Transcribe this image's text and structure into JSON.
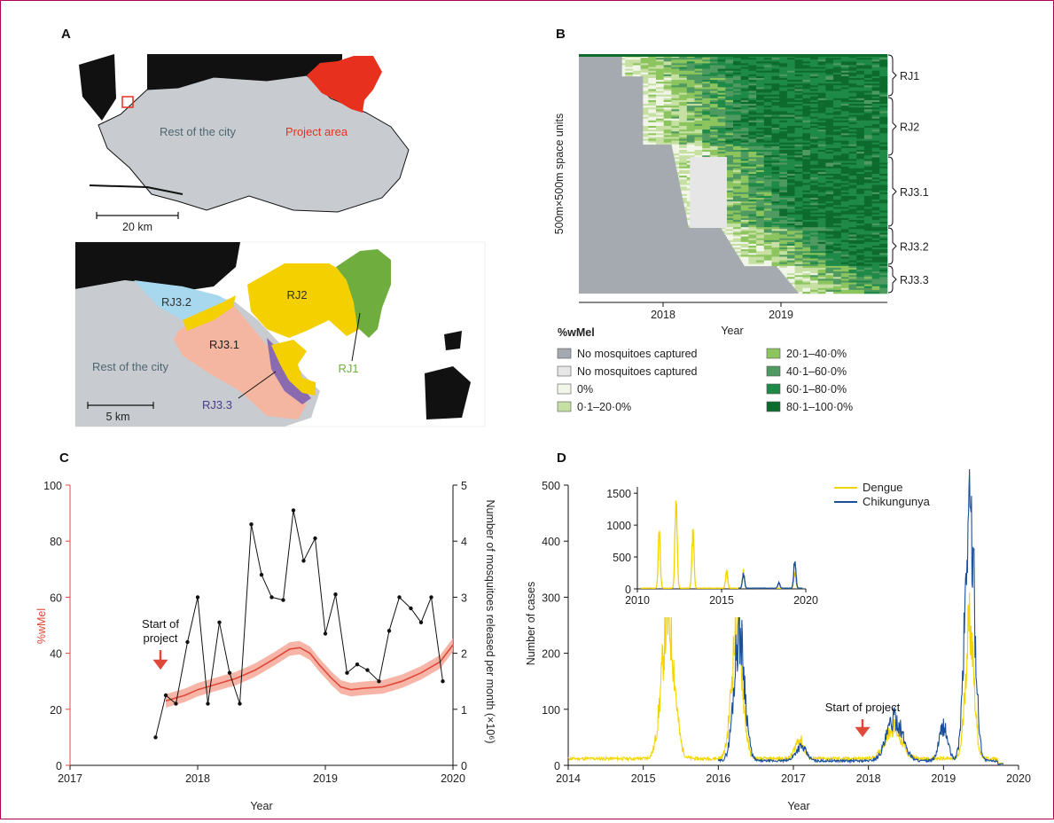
{
  "panels": {
    "A": {
      "letter": "A",
      "scale_top": "20 km",
      "scale_bottom": "5 km",
      "labels": {
        "rest_top": "Rest of the city",
        "project": "Project area",
        "rest_bottom": "Rest of the city",
        "rj1": "RJ1",
        "rj2": "RJ2",
        "rj31": "RJ3.1",
        "rj32": "RJ3.2",
        "rj33": "RJ3.3"
      },
      "colors": {
        "land": "#c8ccd0",
        "project": "#e8301e",
        "rj1": "#6fae3e",
        "rj2": "#f5d000",
        "rj31": "#f4b6a0",
        "rj32": "#a8d8ee",
        "rj33": "#8a6bb0",
        "black": "#111111"
      }
    },
    "B": {
      "letter": "B",
      "ylabel": "500m×500m space units",
      "xlabel": "Year",
      "xticks": [
        "2018",
        "2019"
      ],
      "regions": [
        "RJ1",
        "RJ2",
        "RJ3.1",
        "RJ3.2",
        "RJ3.3"
      ],
      "legend_title": "%wMel",
      "legend": [
        {
          "label": "No mosquitoes captured",
          "color": "#a4aab0"
        },
        {
          "label": "No mosquitoes captured",
          "color": "#e6e6e6"
        },
        {
          "label": "0%",
          "color": "#f2f6e8"
        },
        {
          "label": "0·1–20·0%",
          "color": "#c6e0a4"
        },
        {
          "label": "20·1–40·0%",
          "color": "#8cc45e"
        },
        {
          "label": "40·1–60·0%",
          "color": "#4e9a60"
        },
        {
          "label": "60·1–80·0%",
          "color": "#1f8a48"
        },
        {
          "label": "80·1–100·0%",
          "color": "#0d6b2e"
        }
      ]
    },
    "C": {
      "letter": "C",
      "ylabel_left": "%wMel",
      "ylabel_right": "Number of mosquitoes released per month (×10⁶)",
      "xlabel": "Year",
      "xticks": [
        "2017",
        "2018",
        "2019",
        "2020"
      ],
      "yticks_left": [
        "0",
        "20",
        "40",
        "60",
        "80",
        "100"
      ],
      "yticks_right": [
        "0",
        "1",
        "2",
        "3",
        "4",
        "5"
      ],
      "annotation_line1": "Start of",
      "annotation_line2": "project"
    },
    "D": {
      "letter": "D",
      "ylabel": "Number of cases",
      "xlabel": "Year",
      "xticks": [
        "2014",
        "2015",
        "2016",
        "2017",
        "2018",
        "2019",
        "2020"
      ],
      "yticks": [
        "0",
        "100",
        "200",
        "300",
        "400",
        "500"
      ],
      "inset_xticks": [
        "2010",
        "2015",
        "2020"
      ],
      "inset_yticks": [
        "0",
        "500",
        "1000",
        "1500"
      ],
      "legend_dengue": "Dengue",
      "legend_chik": "Chikungunya",
      "annotation": "Start of project"
    }
  },
  "chart_data": [
    {
      "panel": "B",
      "type": "heatmap",
      "xlabel": "Year",
      "ylabel": "500m×500m space units",
      "xlim": [
        2017.4,
        2019.9
      ],
      "regions": [
        "RJ1",
        "RJ2",
        "RJ3.1",
        "RJ3.2",
        "RJ3.3"
      ]
    },
    {
      "panel": "C",
      "type": "line",
      "xlabel": "Year",
      "xlim": [
        2017,
        2020
      ],
      "ylim": [
        0,
        100
      ],
      "ylim_right": [
        0,
        5
      ],
      "series": [
        {
          "name": "%wMel",
          "axis": "left",
          "color": "#e0483a",
          "x": [
            2017.75,
            2017.9,
            2018.0,
            2018.15,
            2018.3,
            2018.45,
            2018.6,
            2018.72,
            2018.8,
            2018.88,
            2018.95,
            2019.05,
            2019.12,
            2019.2,
            2019.3,
            2019.45,
            2019.6,
            2019.75,
            2019.9,
            2020.0
          ],
          "y": [
            23,
            25,
            27,
            29,
            31,
            34,
            38,
            41.5,
            42,
            40,
            36,
            31,
            28,
            27,
            27.5,
            28,
            30,
            33,
            37,
            43
          ],
          "band": 1.5
        },
        {
          "name": "Released",
          "axis": "right",
          "color": "#111111",
          "x": [
            2017.67,
            2017.75,
            2017.83,
            2017.92,
            2018.0,
            2018.08,
            2018.17,
            2018.25,
            2018.33,
            2018.42,
            2018.5,
            2018.58,
            2018.67,
            2018.75,
            2018.83,
            2018.92,
            2019.0,
            2019.08,
            2019.17,
            2019.25,
            2019.33,
            2019.42,
            2019.5,
            2019.58,
            2019.67,
            2019.75,
            2019.83,
            2019.92
          ],
          "y": [
            0.5,
            1.25,
            1.1,
            2.2,
            3.0,
            1.1,
            2.55,
            1.65,
            1.1,
            4.3,
            3.4,
            3.0,
            2.95,
            4.55,
            3.65,
            4.05,
            2.35,
            3.05,
            1.65,
            1.8,
            1.7,
            1.5,
            2.4,
            3.0,
            2.8,
            2.55,
            3.0,
            1.5
          ]
        }
      ]
    },
    {
      "panel": "D",
      "type": "line",
      "xlabel": "Year",
      "ylabel": "Number of cases",
      "xlim": [
        2014,
        2020
      ],
      "ylim": [
        0,
        500
      ],
      "series": [
        {
          "name": "Dengue",
          "color": "#f3d400",
          "peaks": [
            {
              "x": 2015.33,
              "y": 245,
              "w": 0.12
            },
            {
              "x": 2016.25,
              "y": 235,
              "w": 0.1
            },
            {
              "x": 2017.08,
              "y": 35,
              "w": 0.08
            },
            {
              "x": 2018.33,
              "y": 55,
              "w": 0.15
            },
            {
              "x": 2019.35,
              "y": 245,
              "w": 0.08
            }
          ],
          "base": 12,
          "range": [
            2014.0,
            2019.8
          ]
        },
        {
          "name": "Chikungunya",
          "color": "#1a4f9a",
          "peaks": [
            {
              "x": 2016.28,
              "y": 230,
              "w": 0.1
            },
            {
              "x": 2017.1,
              "y": 25,
              "w": 0.1
            },
            {
              "x": 2018.35,
              "y": 75,
              "w": 0.15
            },
            {
              "x": 2019.0,
              "y": 60,
              "w": 0.08
            },
            {
              "x": 2019.35,
              "y": 450,
              "w": 0.09
            }
          ],
          "base": 8,
          "range": [
            2016.0,
            2019.8
          ]
        }
      ],
      "inset": {
        "xlim": [
          2010,
          2020
        ],
        "ylim": [
          0,
          1600
        ],
        "dengue_peaks": [
          {
            "x": 2011.3,
            "y": 850
          },
          {
            "x": 2012.3,
            "y": 1500
          },
          {
            "x": 2013.3,
            "y": 850
          },
          {
            "x": 2015.3,
            "y": 250
          },
          {
            "x": 2016.3,
            "y": 250
          },
          {
            "x": 2019.35,
            "y": 250
          }
        ],
        "chik_peaks": [
          {
            "x": 2016.3,
            "y": 230
          },
          {
            "x": 2018.4,
            "y": 80
          },
          {
            "x": 2019.35,
            "y": 450
          }
        ]
      }
    }
  ]
}
